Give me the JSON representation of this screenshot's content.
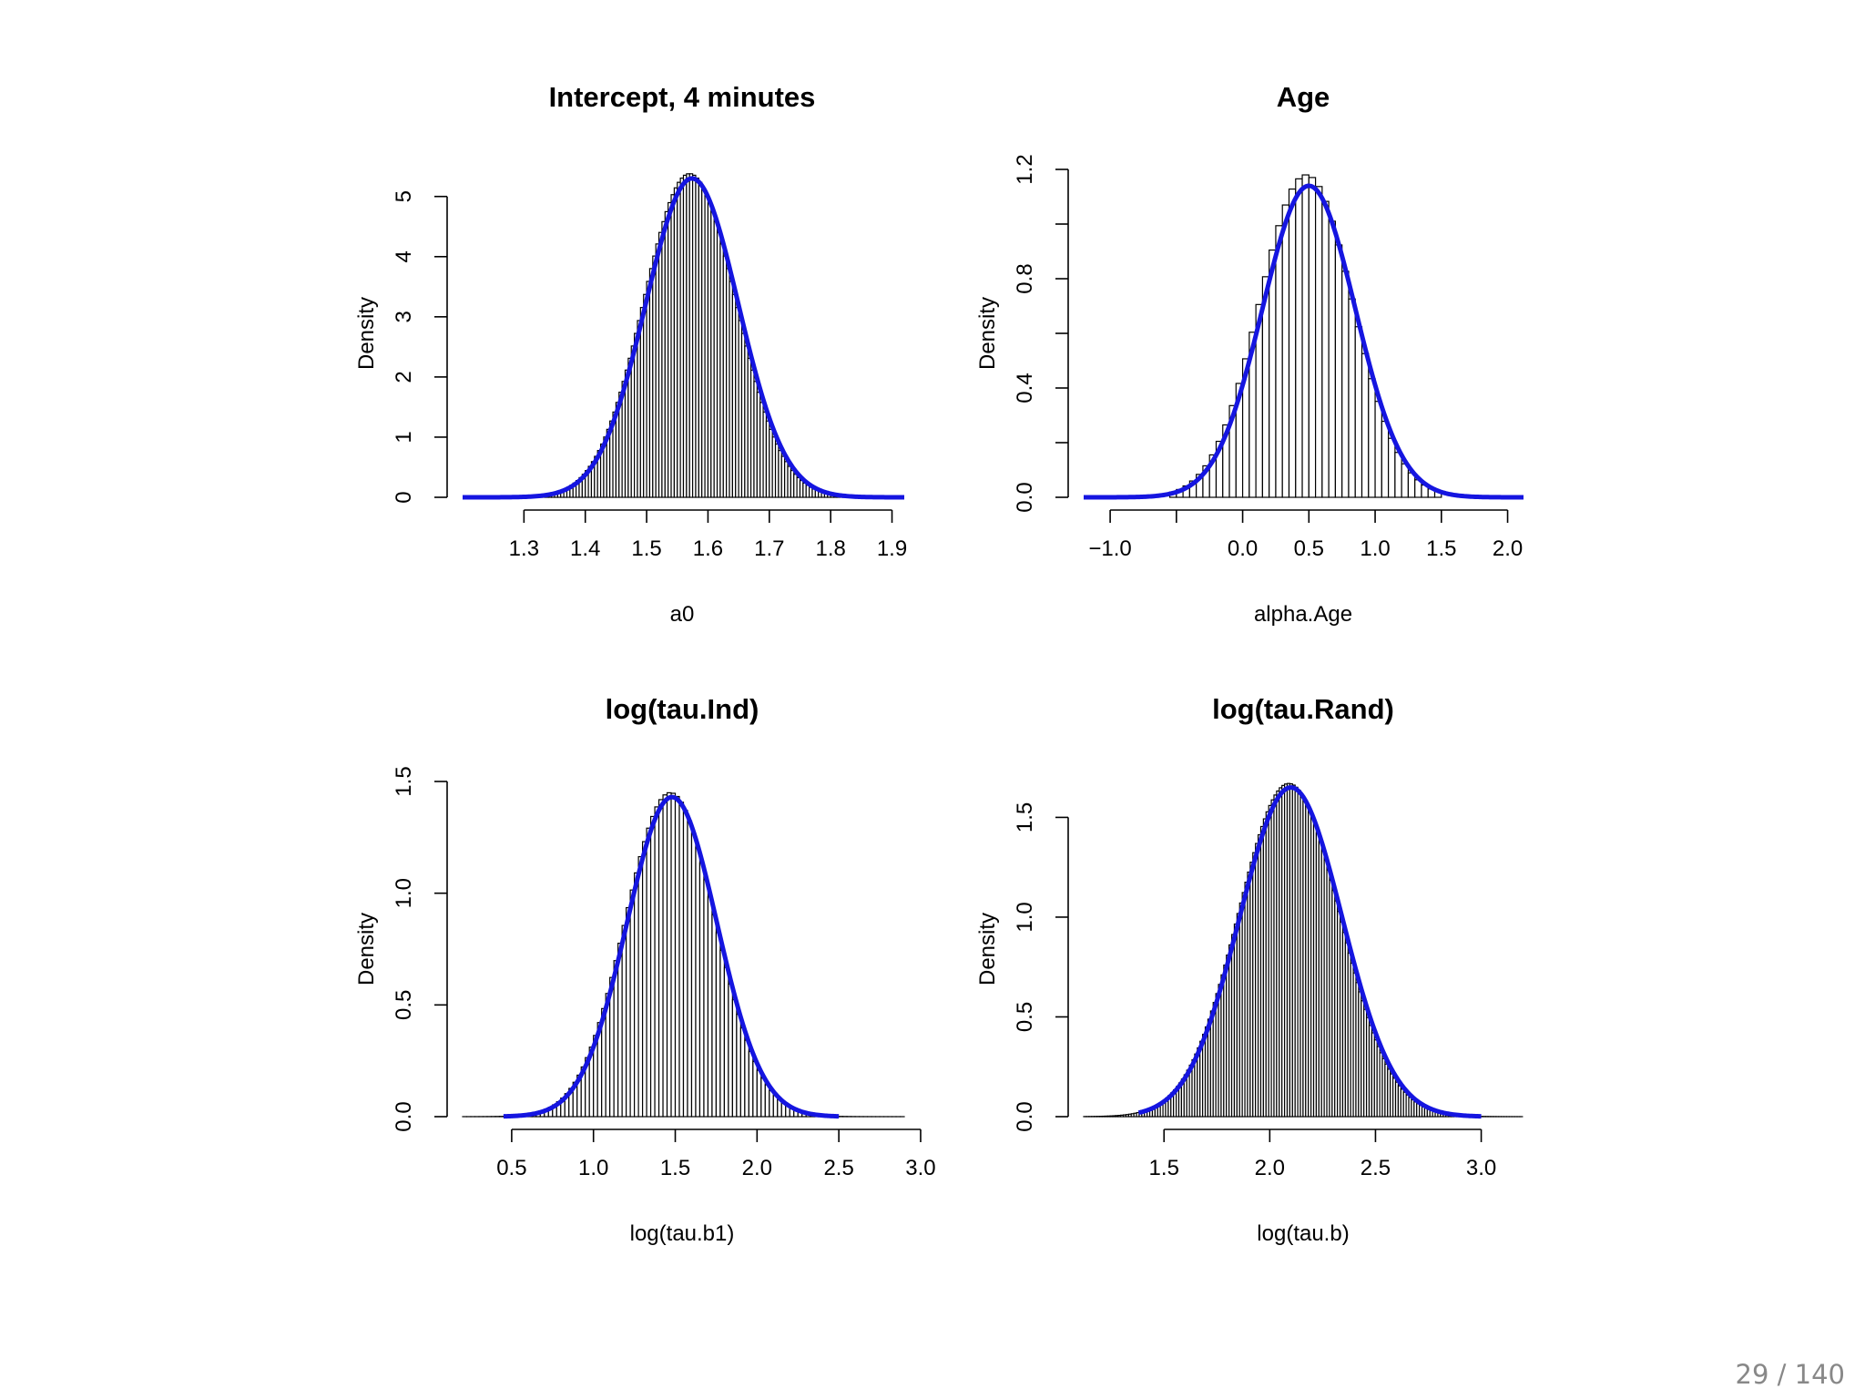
{
  "colors": {
    "curve": "#1515e0",
    "bars": "#ffffff",
    "bar_edge": "#000000",
    "text": "#000000",
    "page_number": "#888888"
  },
  "page_number": "29 / 140",
  "chart_data": [
    {
      "type": "histogram",
      "title": "Intercept, 4 minutes",
      "xlabel": "a0",
      "ylabel": "Density",
      "x_ticks": [
        1.3,
        1.4,
        1.5,
        1.6,
        1.7,
        1.8,
        1.9
      ],
      "x_tick_labels": [
        "1.3",
        "1.4",
        "1.5",
        "1.6",
        "1.7",
        "1.8",
        "1.9"
      ],
      "y_ticks": [
        0,
        1,
        2,
        3,
        4,
        5
      ],
      "y_tick_labels": [
        "0",
        "1",
        "2",
        "3",
        "4",
        "5"
      ],
      "xlim": [
        1.2,
        1.92
      ],
      "ylim": [
        0,
        5.45
      ],
      "hist": {
        "range": [
          1.31,
          1.83
        ],
        "bin_width": 0.005,
        "mean": 1.57,
        "sd": 0.075,
        "peak": 5.38
      },
      "density_curve": {
        "mean": 1.574,
        "sd": 0.0755,
        "peak": 5.3,
        "range": [
          1.2,
          1.92
        ]
      }
    },
    {
      "type": "histogram",
      "title": "Age",
      "xlabel": "alpha.Age",
      "ylabel": "Density",
      "x_ticks": [
        -1.0,
        -0.5,
        0.0,
        0.5,
        1.0,
        1.5,
        2.0
      ],
      "x_tick_labels": [
        "−1.0",
        "",
        "0.0",
        "0.5",
        "1.0",
        "1.5",
        "2.0"
      ],
      "y_ticks": [
        0.0,
        0.2,
        0.4,
        0.6,
        0.8,
        1.0,
        1.2
      ],
      "y_tick_labels": [
        "0.0",
        "",
        "0.4",
        "",
        "0.8",
        "",
        "1.2"
      ],
      "xlim": [
        -1.2,
        2.12
      ],
      "ylim": [
        0,
        1.2
      ],
      "hist": {
        "range": [
          -0.55,
          1.5
        ],
        "bin_width": 0.05,
        "mean": 0.48,
        "sd": 0.35,
        "peak": 1.18
      },
      "density_curve": {
        "mean": 0.5,
        "sd": 0.35,
        "peak": 1.14,
        "range": [
          -1.2,
          2.12
        ]
      }
    },
    {
      "type": "histogram",
      "title": "log(tau.Ind)",
      "xlabel": "log(tau.b1)",
      "ylabel": "Density",
      "x_ticks": [
        0.5,
        1.0,
        1.5,
        2.0,
        2.5,
        3.0
      ],
      "x_tick_labels": [
        "0.5",
        "1.0",
        "1.5",
        "2.0",
        "2.5",
        "3.0"
      ],
      "y_ticks": [
        0.0,
        0.5,
        1.0,
        1.5
      ],
      "y_tick_labels": [
        "0.0",
        "0.5",
        "1.0",
        "1.5"
      ],
      "xlim": [
        0.2,
        2.9
      ],
      "ylim": [
        0,
        1.5
      ],
      "hist": {
        "range": [
          0.2,
          2.9
        ],
        "bin_width": 0.025,
        "mean": 1.47,
        "sd": 0.275,
        "peak": 1.45
      },
      "density_curve": {
        "mean": 1.48,
        "sd": 0.275,
        "peak": 1.43,
        "range": [
          0.45,
          2.5
        ]
      }
    },
    {
      "type": "histogram",
      "title": "log(tau.Rand)",
      "xlabel": "log(tau.b)",
      "ylabel": "Density",
      "x_ticks": [
        1.5,
        2.0,
        2.5,
        3.0
      ],
      "x_tick_labels": [
        "1.5",
        "2.0",
        "2.5",
        "3.0"
      ],
      "y_ticks": [
        0.0,
        0.5,
        1.0,
        1.5
      ],
      "y_tick_labels": [
        "0.0",
        "0.5",
        "1.0",
        "1.5"
      ],
      "xlim": [
        1.12,
        3.2
      ],
      "ylim": [
        0,
        1.68
      ],
      "hist": {
        "range": [
          1.12,
          3.2
        ],
        "bin_width": 0.0125,
        "mean": 2.09,
        "sd": 0.24,
        "peak": 1.67
      },
      "density_curve": {
        "mean": 2.1,
        "sd": 0.242,
        "peak": 1.65,
        "range": [
          1.38,
          3.0
        ]
      }
    }
  ]
}
